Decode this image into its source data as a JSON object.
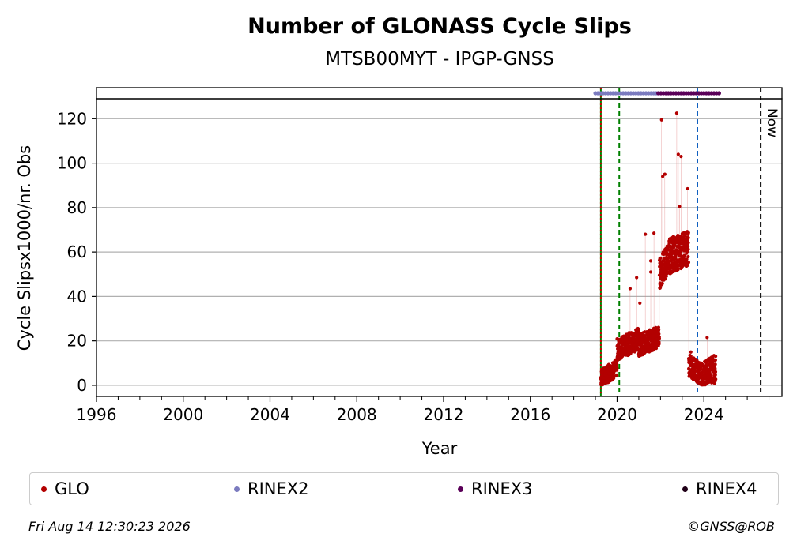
{
  "chart_data": {
    "type": "scatter",
    "title": "Number of GLONASS Cycle Slips",
    "subtitle": "MTSB00MYT - IPGP-GNSS",
    "xlabel": "Year",
    "ylabel": "Cycle Slipsx1000/nr. Obs",
    "xlim": [
      1996,
      2027.6
    ],
    "ylim": [
      -5,
      129
    ],
    "grid": "horizontal",
    "x_ticks": [
      "1996",
      "2000",
      "2004",
      "2008",
      "2012",
      "2016",
      "2020",
      "2024"
    ],
    "y_ticks": [
      "0",
      "20",
      "40",
      "60",
      "80",
      "100",
      "120"
    ],
    "series": [
      {
        "name": "GLO",
        "color": "#b30000",
        "segments": [
          {
            "x_start": 2019.25,
            "x_end": 2020.0,
            "y_start": 3,
            "y_end": 8,
            "spread": 4
          },
          {
            "x_start": 2020.0,
            "x_end": 2021.0,
            "y_start": 16,
            "y_end": 21,
            "spread": 5
          },
          {
            "x_start": 2021.0,
            "x_end": 2021.95,
            "y_start": 18,
            "y_end": 22,
            "spread": 5
          },
          {
            "x_start": 2021.95,
            "x_end": 2022.4,
            "y_start": 50,
            "y_end": 58,
            "spread": 7
          },
          {
            "x_start": 2022.4,
            "x_end": 2023.3,
            "y_start": 58,
            "y_end": 62,
            "spread": 8
          },
          {
            "x_start": 2023.3,
            "x_end": 2023.9,
            "y_start": 9,
            "y_end": 5,
            "spread": 5
          },
          {
            "x_start": 2023.9,
            "x_end": 2024.55,
            "y_start": 4,
            "y_end": 8,
            "spread": 6
          }
        ],
        "outliers": [
          [
            2020.6,
            43.5
          ],
          [
            2020.9,
            48.5
          ],
          [
            2021.05,
            37
          ],
          [
            2021.3,
            68
          ],
          [
            2021.55,
            51
          ],
          [
            2021.7,
            68.5
          ],
          [
            2021.55,
            56
          ],
          [
            2022.05,
            119.5
          ],
          [
            2022.1,
            94
          ],
          [
            2022.2,
            95
          ],
          [
            2022.6,
            67
          ],
          [
            2022.75,
            122.5
          ],
          [
            2022.82,
            104
          ],
          [
            2022.88,
            80.5
          ],
          [
            2022.95,
            103
          ],
          [
            2023.25,
            88.5
          ],
          [
            2024.15,
            21.5
          ],
          [
            2023.4,
            15
          ],
          [
            2024.5,
            0.8
          ]
        ]
      }
    ],
    "rinex_bars": [
      {
        "name": "RINEX2",
        "color": "#7b7bbf",
        "x_start": 2019.0,
        "x_end": 2021.9
      },
      {
        "name": "RINEX3",
        "color": "#5a0058",
        "x_start": 2021.9,
        "x_end": 2024.8
      }
    ],
    "vlines": [
      {
        "x": 2019.25,
        "color": "#008000",
        "style": "solid"
      },
      {
        "x": 2019.25,
        "color": "#cc0000",
        "style": "dotted"
      },
      {
        "x": 2020.1,
        "color": "#008000",
        "style": "dashed"
      },
      {
        "x": 2023.7,
        "color": "#1060c0",
        "style": "dashed"
      },
      {
        "x": 2026.62,
        "color": "#000000",
        "style": "dashed",
        "label": "Now"
      }
    ]
  },
  "legend": [
    {
      "label": "GLO",
      "color": "#b30000"
    },
    {
      "label": "RINEX2",
      "color": "#7b7bbf"
    },
    {
      "label": "RINEX3",
      "color": "#5a0058"
    },
    {
      "label": "RINEX4",
      "color": "#200018"
    }
  ],
  "footer": {
    "timestamp": "Fri Aug 14 12:30:23 2026",
    "credit": "©GNSS@ROB"
  }
}
